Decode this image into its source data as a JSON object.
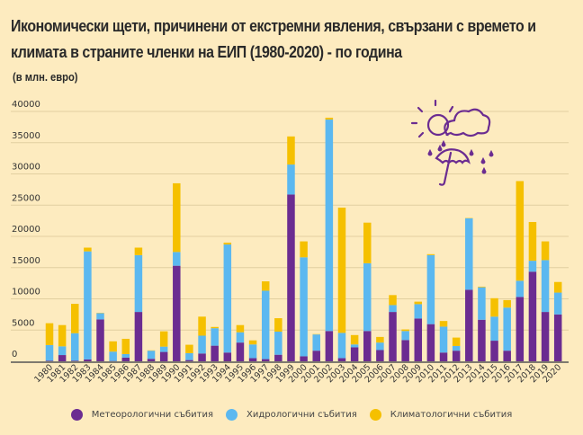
{
  "chart_data": {
    "type": "bar",
    "stacked": true,
    "title": "Икономически щети, причинени от екстремни явления, свързани с времето и климата в страните членки на ЕИП (1980-2020) - по година",
    "subtitle": "(в млн. евро)",
    "xlabel": "",
    "ylabel": "",
    "ylim": [
      0,
      40000
    ],
    "yticks": [
      "0",
      "5000",
      "10000",
      "15000",
      "20000",
      "25000",
      "30000",
      "35000",
      "40000"
    ],
    "grid": true,
    "legend_position": "bottom",
    "categories": [
      "1980",
      "1981",
      "1982",
      "1983",
      "1984",
      "1985",
      "1986",
      "1987",
      "1988",
      "1989",
      "1990",
      "1991",
      "1992",
      "1993",
      "1994",
      "1995",
      "1996",
      "1997",
      "1998",
      "1999",
      "2000",
      "2001",
      "2002",
      "2003",
      "2004",
      "2005",
      "2006",
      "2007",
      "2008",
      "2009",
      "2010",
      "2011",
      "2012",
      "2013",
      "2014",
      "2015",
      "2016",
      "2017",
      "2018",
      "2019",
      "2020"
    ],
    "series": [
      {
        "name": "Метеорологични събития",
        "color": "#6b2c91",
        "values": [
          100,
          1000,
          100,
          300,
          6700,
          50,
          600,
          7900,
          400,
          1500,
          15300,
          200,
          1250,
          2500,
          1400,
          3000,
          500,
          350,
          1050,
          26700,
          800,
          1700,
          4850,
          500,
          2250,
          4850,
          1800,
          7900,
          3400,
          6850,
          5950,
          1400,
          1700,
          11450,
          6650,
          3300,
          1700,
          10300,
          14350,
          7900,
          7500
        ]
      },
      {
        "name": "Хидрологични събития",
        "color": "#5bb8f0",
        "values": [
          2500,
          1400,
          4400,
          17300,
          1000,
          1500,
          550,
          9100,
          1300,
          850,
          2200,
          1100,
          2850,
          2800,
          17300,
          1650,
          2200,
          10950,
          3700,
          4800,
          15850,
          2600,
          33850,
          4050,
          450,
          10850,
          1200,
          1100,
          1450,
          2300,
          11050,
          4150,
          750,
          11450,
          5200,
          3850,
          6900,
          2600,
          1750,
          8300,
          3500
        ]
      },
      {
        "name": "Климатологични събития",
        "color": "#f5c000",
        "values": [
          3500,
          3400,
          4700,
          600,
          50,
          1650,
          2450,
          1200,
          50,
          2450,
          11000,
          1350,
          3050,
          200,
          300,
          1150,
          650,
          1500,
          2150,
          4500,
          2550,
          50,
          300,
          20050,
          1500,
          6500,
          900,
          1600,
          250,
          400,
          150,
          900,
          1350,
          50,
          100,
          2950,
          1200,
          15950,
          6200,
          3000,
          1700
        ]
      }
    ]
  },
  "decor": {
    "icon": "weather-sun-cloud-rain-umbrella-icon",
    "icon_color": "#6b2c91",
    "background": "#fdebbf"
  }
}
